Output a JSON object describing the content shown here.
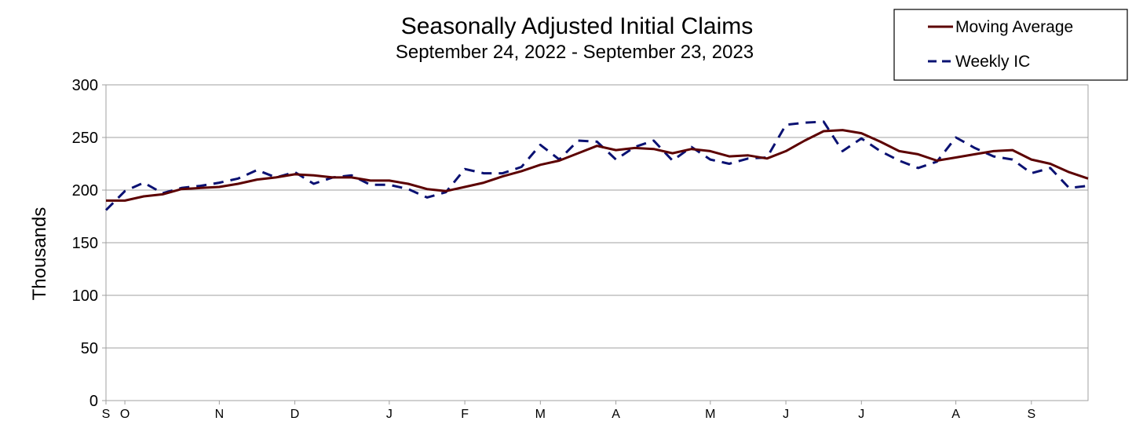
{
  "chart_data": {
    "type": "line",
    "title": "Seasonally Adjusted Initial Claims",
    "subtitle": "September 24, 2022 - September 23, 2023",
    "ylabel": "Thousands",
    "xlabel": "",
    "ylim": [
      0,
      300
    ],
    "yticks": [
      0,
      50,
      100,
      150,
      200,
      250,
      300
    ],
    "grid": "horizontal",
    "legend_position": "top-right",
    "x_tick_labels": [
      {
        "label": "S",
        "week": 0
      },
      {
        "label": "O",
        "week": 1
      },
      {
        "label": "N",
        "week": 6
      },
      {
        "label": "D",
        "week": 10
      },
      {
        "label": "J",
        "week": 15
      },
      {
        "label": "F",
        "week": 19
      },
      {
        "label": "M",
        "week": 23
      },
      {
        "label": "A",
        "week": 27
      },
      {
        "label": "M",
        "week": 32
      },
      {
        "label": "J",
        "week": 36
      },
      {
        "label": "J",
        "week": 40
      },
      {
        "label": "A",
        "week": 45
      },
      {
        "label": "S",
        "week": 49
      }
    ],
    "x": [
      "2022-09-24",
      "2022-10-01",
      "2022-10-08",
      "2022-10-15",
      "2022-10-22",
      "2022-10-29",
      "2022-11-05",
      "2022-11-12",
      "2022-11-19",
      "2022-11-26",
      "2022-12-03",
      "2022-12-10",
      "2022-12-17",
      "2022-12-24",
      "2022-12-31",
      "2023-01-07",
      "2023-01-14",
      "2023-01-21",
      "2023-01-28",
      "2023-02-04",
      "2023-02-11",
      "2023-02-18",
      "2023-02-25",
      "2023-03-04",
      "2023-03-11",
      "2023-03-18",
      "2023-03-25",
      "2023-04-01",
      "2023-04-08",
      "2023-04-15",
      "2023-04-22",
      "2023-04-29",
      "2023-05-06",
      "2023-05-13",
      "2023-05-20",
      "2023-05-27",
      "2023-06-03",
      "2023-06-10",
      "2023-06-17",
      "2023-06-24",
      "2023-07-01",
      "2023-07-08",
      "2023-07-15",
      "2023-07-22",
      "2023-07-29",
      "2023-08-05",
      "2023-08-12",
      "2023-08-19",
      "2023-08-26",
      "2023-09-02",
      "2023-09-09",
      "2023-09-16",
      "2023-09-23"
    ],
    "series": [
      {
        "name": "Moving Average",
        "color": "#5c0000",
        "style": "solid",
        "values": [
          190,
          190,
          194,
          196,
          201,
          202,
          203,
          206,
          210,
          212,
          215,
          214,
          212,
          212,
          209,
          209,
          206,
          201,
          199,
          203,
          207,
          213,
          218,
          224,
          228,
          235,
          242,
          238,
          240,
          239,
          235,
          239,
          237,
          232,
          233,
          230,
          237,
          247,
          256,
          257,
          254,
          246,
          237,
          234,
          228,
          231,
          234,
          237,
          238,
          229,
          225,
          217,
          211
        ]
      },
      {
        "name": "Weekly IC",
        "color": "#0a1172",
        "style": "dashed",
        "values": [
          181,
          199,
          207,
          197,
          202,
          204,
          207,
          211,
          219,
          212,
          217,
          206,
          212,
          214,
          205,
          205,
          201,
          193,
          198,
          220,
          216,
          216,
          222,
          243,
          229,
          247,
          246,
          229,
          241,
          247,
          228,
          241,
          229,
          225,
          230,
          231,
          262,
          264,
          265,
          237,
          249,
          237,
          228,
          221,
          227,
          250,
          240,
          232,
          229,
          216,
          221,
          202,
          204
        ]
      }
    ]
  }
}
